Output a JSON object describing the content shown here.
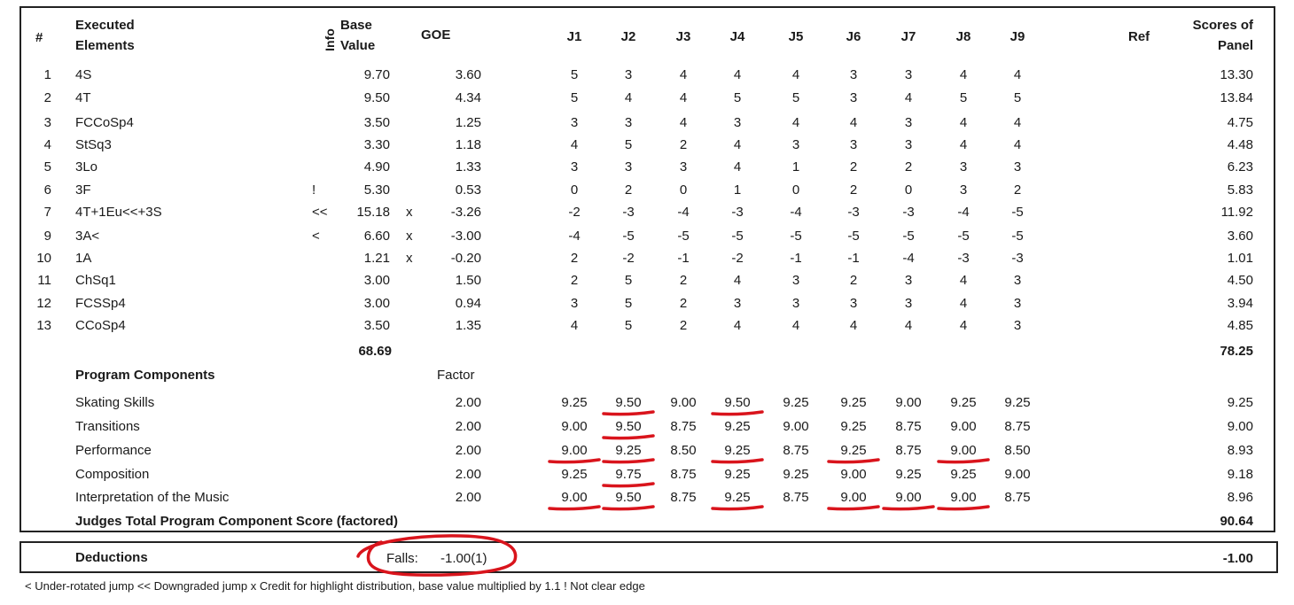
{
  "headers": {
    "num": "#",
    "elements": [
      "Executed",
      "Elements"
    ],
    "info": "Info",
    "base": [
      "Base",
      "Value"
    ],
    "goe": "GOE",
    "judges": [
      "J1",
      "J2",
      "J3",
      "J4",
      "J5",
      "J6",
      "J7",
      "J8",
      "J9"
    ],
    "ref": "Ref",
    "scores": [
      "Scores of",
      "Panel"
    ]
  },
  "elements": [
    {
      "num": "1",
      "name": "4S",
      "info": "",
      "base": "9.70",
      "x": "",
      "goe": "3.60",
      "j": [
        "5",
        "3",
        "4",
        "4",
        "4",
        "3",
        "3",
        "4",
        "4"
      ],
      "score": "13.30"
    },
    {
      "num": "2",
      "name": "4T",
      "info": "",
      "base": "9.50",
      "x": "",
      "goe": "4.34",
      "j": [
        "5",
        "4",
        "4",
        "5",
        "5",
        "3",
        "4",
        "5",
        "5"
      ],
      "score": "13.84"
    },
    {
      "num": "3",
      "name": "FCCoSp4",
      "info": "",
      "base": "3.50",
      "x": "",
      "goe": "1.25",
      "j": [
        "3",
        "3",
        "4",
        "3",
        "4",
        "4",
        "3",
        "4",
        "4"
      ],
      "score": "4.75"
    },
    {
      "num": "4",
      "name": "StSq3",
      "info": "",
      "base": "3.30",
      "x": "",
      "goe": "1.18",
      "j": [
        "4",
        "5",
        "2",
        "4",
        "3",
        "3",
        "3",
        "4",
        "4"
      ],
      "score": "4.48"
    },
    {
      "num": "5",
      "name": "3Lo",
      "info": "",
      "base": "4.90",
      "x": "",
      "goe": "1.33",
      "j": [
        "3",
        "3",
        "3",
        "4",
        "1",
        "2",
        "2",
        "3",
        "3"
      ],
      "score": "6.23"
    },
    {
      "num": "6",
      "name": "3F",
      "info": "!",
      "base": "5.30",
      "x": "",
      "goe": "0.53",
      "j": [
        "0",
        "2",
        "0",
        "1",
        "0",
        "2",
        "0",
        "3",
        "2"
      ],
      "score": "5.83"
    },
    {
      "num": "7",
      "name": "4T+1Eu<<+3S",
      "info": "<<",
      "base": "15.18",
      "x": "x",
      "goe": "-3.26",
      "j": [
        "-2",
        "-3",
        "-4",
        "-3",
        "-4",
        "-3",
        "-3",
        "-4",
        "-5"
      ],
      "score": "11.92"
    },
    {
      "num": "9",
      "name": "3A<",
      "info": "<",
      "base": "6.60",
      "x": "x",
      "goe": "-3.00",
      "j": [
        "-4",
        "-5",
        "-5",
        "-5",
        "-5",
        "-5",
        "-5",
        "-5",
        "-5"
      ],
      "score": "3.60"
    },
    {
      "num": "10",
      "name": "1A",
      "info": "",
      "base": "1.21",
      "x": "x",
      "goe": "-0.20",
      "j": [
        "2",
        "-2",
        "-1",
        "-2",
        "-1",
        "-1",
        "-4",
        "-3",
        "-3"
      ],
      "score": "1.01"
    },
    {
      "num": "11",
      "name": "ChSq1",
      "info": "",
      "base": "3.00",
      "x": "",
      "goe": "1.50",
      "j": [
        "2",
        "5",
        "2",
        "4",
        "3",
        "2",
        "3",
        "4",
        "3"
      ],
      "score": "4.50"
    },
    {
      "num": "12",
      "name": "FCSSp4",
      "info": "",
      "base": "3.00",
      "x": "",
      "goe": "0.94",
      "j": [
        "3",
        "5",
        "2",
        "3",
        "3",
        "3",
        "3",
        "4",
        "3"
      ],
      "score": "3.94"
    },
    {
      "num": "13",
      "name": "CCoSp4",
      "info": "",
      "base": "3.50",
      "x": "",
      "goe": "1.35",
      "j": [
        "4",
        "5",
        "2",
        "4",
        "4",
        "4",
        "4",
        "4",
        "3"
      ],
      "score": "4.85"
    }
  ],
  "totals": {
    "base": "68.69",
    "score": "78.25"
  },
  "components": {
    "title": "Program Components",
    "factor_label": "Factor",
    "rows": [
      {
        "name": "Skating Skills",
        "factor": "2.00",
        "j": [
          "9.25",
          "9.50",
          "9.00",
          "9.50",
          "9.25",
          "9.25",
          "9.00",
          "9.25",
          "9.25"
        ],
        "score": "9.25",
        "marked": [
          1,
          3
        ]
      },
      {
        "name": "Transitions",
        "factor": "2.00",
        "j": [
          "9.00",
          "9.50",
          "8.75",
          "9.25",
          "9.00",
          "9.25",
          "8.75",
          "9.00",
          "8.75"
        ],
        "score": "9.00",
        "marked": [
          1
        ]
      },
      {
        "name": "Performance",
        "factor": "2.00",
        "j": [
          "9.00",
          "9.25",
          "8.50",
          "9.25",
          "8.75",
          "9.25",
          "8.75",
          "9.00",
          "8.50"
        ],
        "score": "8.93",
        "marked": [
          0,
          1,
          3,
          5,
          7
        ]
      },
      {
        "name": "Composition",
        "factor": "2.00",
        "j": [
          "9.25",
          "9.75",
          "8.75",
          "9.25",
          "9.25",
          "9.00",
          "9.25",
          "9.25",
          "9.00"
        ],
        "score": "9.18",
        "marked": [
          1
        ]
      },
      {
        "name": "Interpretation of the Music",
        "factor": "2.00",
        "j": [
          "9.00",
          "9.50",
          "8.75",
          "9.25",
          "8.75",
          "9.00",
          "9.00",
          "9.00",
          "8.75"
        ],
        "score": "8.96",
        "marked": [
          0,
          1,
          3,
          5,
          6,
          7
        ]
      }
    ],
    "total_label": "Judges Total Program Component Score (factored)",
    "total": "90.64"
  },
  "deductions": {
    "label": "Deductions",
    "falls_label": "Falls:",
    "falls_value": "-1.00(1)",
    "total": "-1.00"
  },
  "footnote": "<  Under-rotated jump   <<  Downgraded jump   x  Credit for highlight distribution, base value multiplied by 1.1   !  Not clear edge",
  "colors": {
    "annotation": "#d9141c",
    "text": "#1a1a1a",
    "border": "#222222"
  }
}
